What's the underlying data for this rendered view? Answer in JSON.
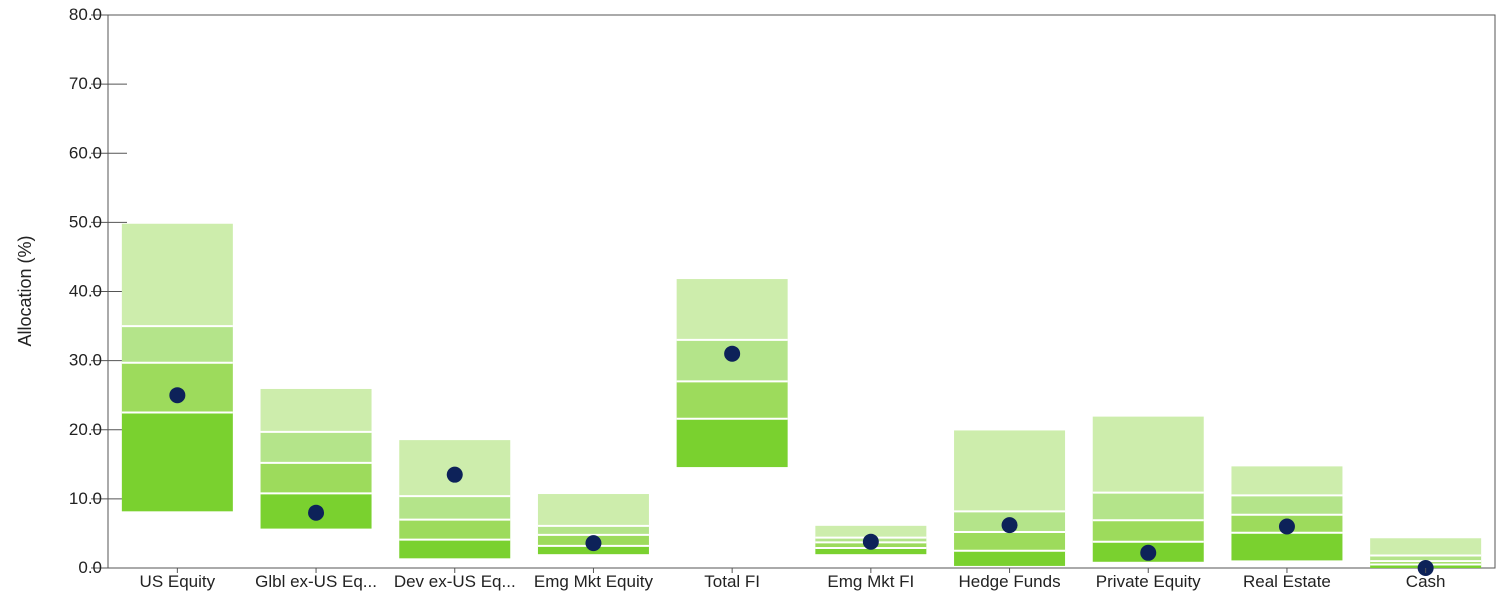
{
  "chart_data": {
    "type": "floating-range-bar",
    "ylabel": "Allocation (%)",
    "ylim": [
      0,
      80
    ],
    "y_ticks": [
      "0.0",
      "10.0",
      "20.0",
      "30.0",
      "40.0",
      "50.0",
      "60.0",
      "70.0",
      "80.0"
    ],
    "grid": false,
    "colors": {
      "band_1": "#7ad12f",
      "band_2": "#9ddb5c",
      "band_3": "#b4e48a",
      "band_4": "#cdedac",
      "marker": "#0d2259",
      "axis": "#555555"
    },
    "categories": [
      {
        "label": "US Equity",
        "percentiles": [
          8.2,
          22.5,
          29.7,
          35.0,
          49.8
        ],
        "value": 25.0
      },
      {
        "label": "Glbl ex-US Eq...",
        "percentiles": [
          5.7,
          10.8,
          15.2,
          19.7,
          25.9
        ],
        "value": 8.0
      },
      {
        "label": "Dev ex-US Eq...",
        "percentiles": [
          1.4,
          4.1,
          7.0,
          10.4,
          18.5
        ],
        "value": 13.5
      },
      {
        "label": "Emg Mkt Equity",
        "percentiles": [
          2.0,
          3.2,
          4.8,
          6.1,
          10.7
        ],
        "value": 3.6
      },
      {
        "label": "Total FI",
        "percentiles": [
          14.6,
          21.6,
          27.0,
          33.0,
          41.8
        ],
        "value": 31.0
      },
      {
        "label": "Emg Mkt FI",
        "percentiles": [
          2.0,
          2.9,
          3.7,
          4.4,
          6.1
        ],
        "value": 3.8
      },
      {
        "label": "Hedge Funds",
        "percentiles": [
          0.3,
          2.5,
          5.2,
          8.2,
          19.9
        ],
        "value": 6.2
      },
      {
        "label": "Private Equity",
        "percentiles": [
          0.9,
          3.8,
          6.9,
          10.9,
          21.9
        ],
        "value": 2.2
      },
      {
        "label": "Real Estate",
        "percentiles": [
          1.1,
          5.1,
          7.7,
          10.5,
          14.7
        ],
        "value": 6.0
      },
      {
        "label": "Cash",
        "percentiles": [
          0.0,
          0.5,
          1.0,
          1.8,
          4.3
        ],
        "value": 0.0
      }
    ]
  }
}
